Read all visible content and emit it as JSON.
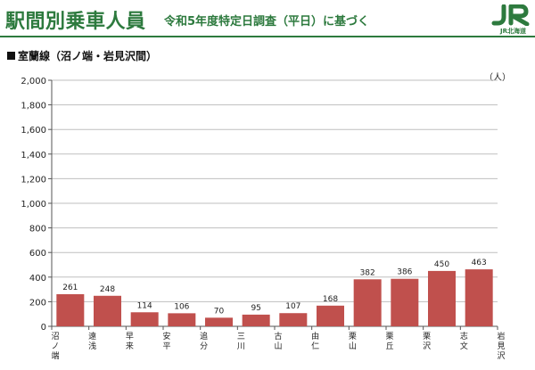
{
  "header": {
    "title": "駅間別乗車人員",
    "subtitle": "令和5年度特定日調査（平日）に基づく",
    "logo_text": "JR北海道",
    "accent_color": "#2d7a3e"
  },
  "section_label": "室蘭線（沼ノ端・岩見沢間）",
  "chart_data": {
    "type": "bar",
    "title": "",
    "xlabel": "",
    "ylabel": "",
    "unit_label": "（人）",
    "ylim": [
      0,
      2000
    ],
    "yticks": [
      "0",
      "200",
      "400",
      "600",
      "800",
      "1,000",
      "1,200",
      "1,400",
      "1,600",
      "1,800",
      "2,000"
    ],
    "grid": true,
    "bar_color": "#c0504d",
    "stations": [
      "沼ノ端",
      "遠浅",
      "早来",
      "安平",
      "追分",
      "三川",
      "古山",
      "由仁",
      "栗山",
      "栗丘",
      "栗沢",
      "志文",
      "岩見沢"
    ],
    "values": [
      261,
      248,
      114,
      106,
      70,
      95,
      107,
      168,
      382,
      386,
      450,
      463
    ]
  }
}
